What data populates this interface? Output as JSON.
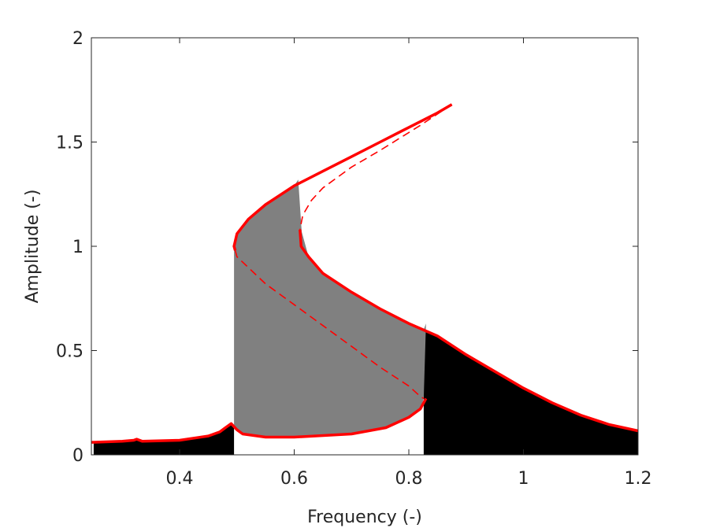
{
  "chart_data": {
    "type": "line",
    "xlabel": "Frequency (-)",
    "ylabel": "Amplitude (-)",
    "xlim": [
      0.246,
      1.2
    ],
    "ylim": [
      0,
      2
    ],
    "xticks": [
      0.4,
      0.6,
      0.8,
      1,
      1.2
    ],
    "yticks": [
      0,
      0.5,
      1,
      1.5,
      2
    ],
    "fills": [
      {
        "color": "#000000",
        "x": [
          0.25,
          0.25,
          0.3,
          0.32,
          0.325,
          0.335,
          0.4,
          0.45,
          0.47,
          0.48,
          0.49,
          0.495,
          0.495
        ],
        "values": [
          0,
          0.06,
          0.065,
          0.07,
          0.075,
          0.065,
          0.07,
          0.09,
          0.11,
          0.13,
          0.15,
          0.14,
          0
        ]
      },
      {
        "color": "#000000",
        "x": [
          0.826,
          0.826,
          0.85,
          0.9,
          0.95,
          1.0,
          1.05,
          1.1,
          1.15,
          1.2,
          1.2
        ],
        "values": [
          0,
          0.6,
          0.57,
          0.48,
          0.4,
          0.32,
          0.25,
          0.19,
          0.145,
          0.115,
          0
        ]
      },
      {
        "color": "#808080",
        "x": [
          0.495,
          0.495,
          0.5,
          0.52,
          0.55,
          0.6,
          0.607,
          0.613,
          0.625,
          0.65,
          0.7,
          0.75,
          0.8,
          0.826,
          0.83,
          0.826,
          0.82,
          0.8,
          0.76,
          0.7,
          0.6,
          0.55,
          0.51,
          0.495
        ],
        "values": [
          0.14,
          1.0,
          1.06,
          1.13,
          1.2,
          1.29,
          1.32,
          1.07,
          0.95,
          0.87,
          0.78,
          0.7,
          0.63,
          0.6,
          0.63,
          0.27,
          0.22,
          0.18,
          0.13,
          0.1,
          0.085,
          0.085,
          0.1,
          0.14
        ]
      }
    ],
    "series": [
      {
        "color": "#ff0000",
        "style": "solid",
        "x": [
          0.246,
          0.3,
          0.32,
          0.325,
          0.335,
          0.4,
          0.45,
          0.47,
          0.48,
          0.49,
          0.5,
          0.51,
          0.55,
          0.6,
          0.7,
          0.76,
          0.8,
          0.82,
          0.83
        ],
        "values": [
          0.06,
          0.065,
          0.07,
          0.075,
          0.065,
          0.07,
          0.09,
          0.11,
          0.13,
          0.15,
          0.12,
          0.1,
          0.085,
          0.085,
          0.1,
          0.13,
          0.18,
          0.22,
          0.27
        ]
      },
      {
        "color": "#ff0000",
        "style": "solid",
        "x": [
          0.497,
          0.495,
          0.5,
          0.52,
          0.55,
          0.6,
          0.65,
          0.7,
          0.75,
          0.8,
          0.85,
          0.875
        ],
        "values": [
          0.98,
          1.0,
          1.06,
          1.13,
          1.2,
          1.29,
          1.36,
          1.43,
          1.5,
          1.57,
          1.64,
          1.68
        ]
      },
      {
        "color": "#ff0000",
        "style": "solid",
        "x": [
          0.61,
          0.612,
          0.625,
          0.65,
          0.7,
          0.75,
          0.8,
          0.85,
          0.9,
          0.95,
          1.0,
          1.05,
          1.1,
          1.15,
          1.2
        ],
        "values": [
          1.08,
          1.0,
          0.95,
          0.87,
          0.78,
          0.7,
          0.63,
          0.57,
          0.48,
          0.4,
          0.32,
          0.25,
          0.19,
          0.145,
          0.115
        ]
      },
      {
        "color": "#ff0000",
        "style": "dashed",
        "x": [
          0.875,
          0.82,
          0.75,
          0.7,
          0.65,
          0.63,
          0.615,
          0.61
        ],
        "values": [
          1.68,
          1.58,
          1.46,
          1.38,
          1.28,
          1.22,
          1.15,
          1.08
        ]
      },
      {
        "color": "#ff0000",
        "style": "dashed",
        "x": [
          0.497,
          0.5,
          0.55,
          0.6,
          0.65,
          0.7,
          0.75,
          0.8,
          0.82,
          0.826
        ],
        "values": [
          0.98,
          0.95,
          0.82,
          0.72,
          0.62,
          0.52,
          0.42,
          0.33,
          0.28,
          0.27
        ]
      }
    ]
  }
}
